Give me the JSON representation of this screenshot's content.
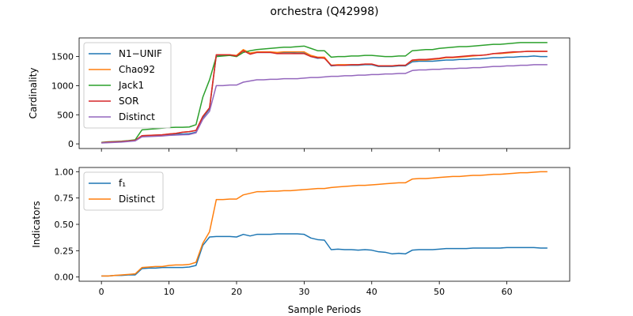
{
  "figure": {
    "title": "orchestra (Q42998)",
    "xlabel": "Sample Periods"
  },
  "chart_data": [
    {
      "type": "line",
      "ylabel": "Cardinality",
      "xlim": [
        -3.3,
        69.3
      ],
      "ylim": [
        -80,
        1820
      ],
      "x_ticks": [
        0,
        10,
        20,
        30,
        40,
        50,
        60
      ],
      "y_ticks": [
        0,
        500,
        1000,
        1500
      ],
      "x_tick_labels_visible": false,
      "legend": "upper-left",
      "grid": false,
      "series": [
        {
          "name": "N1−UNIF",
          "color": "#1f77b4",
          "values": [
            20,
            30,
            35,
            40,
            50,
            60,
            130,
            135,
            140,
            145,
            160,
            170,
            170,
            175,
            200,
            450,
            600,
            1520,
            1520,
            1520,
            1510,
            1610,
            1550,
            1570,
            1570,
            1570,
            1560,
            1570,
            1570,
            1560,
            1560,
            1500,
            1470,
            1480,
            1340,
            1350,
            1350,
            1350,
            1350,
            1360,
            1360,
            1330,
            1330,
            1330,
            1340,
            1340,
            1410,
            1420,
            1420,
            1420,
            1430,
            1440,
            1440,
            1450,
            1450,
            1460,
            1460,
            1470,
            1480,
            1480,
            1490,
            1490,
            1500,
            1500,
            1510,
            1500,
            1500
          ]
        },
        {
          "name": "Chao92",
          "color": "#ff7f0e",
          "values": [
            20,
            30,
            35,
            40,
            50,
            60,
            140,
            145,
            150,
            155,
            170,
            180,
            200,
            210,
            230,
            470,
            620,
            1530,
            1530,
            1530,
            1520,
            1620,
            1560,
            1580,
            1580,
            1580,
            1570,
            1580,
            1580,
            1580,
            1580,
            1520,
            1490,
            1490,
            1350,
            1360,
            1360,
            1360,
            1360,
            1370,
            1370,
            1340,
            1340,
            1340,
            1350,
            1350,
            1430,
            1440,
            1440,
            1450,
            1460,
            1480,
            1480,
            1490,
            1500,
            1510,
            1520,
            1530,
            1550,
            1550,
            1560,
            1570,
            1580,
            1590,
            1590,
            1590,
            1590
          ]
        },
        {
          "name": "Jack1",
          "color": "#2ca02c",
          "values": [
            25,
            35,
            40,
            45,
            55,
            70,
            240,
            250,
            260,
            270,
            280,
            285,
            285,
            290,
            330,
            800,
            1100,
            1500,
            1510,
            1520,
            1500,
            1570,
            1600,
            1620,
            1630,
            1640,
            1650,
            1660,
            1660,
            1670,
            1680,
            1640,
            1600,
            1600,
            1490,
            1500,
            1500,
            1510,
            1510,
            1520,
            1520,
            1510,
            1500,
            1500,
            1510,
            1510,
            1600,
            1610,
            1620,
            1620,
            1640,
            1650,
            1660,
            1670,
            1670,
            1680,
            1690,
            1700,
            1710,
            1710,
            1720,
            1730,
            1740,
            1740,
            1740,
            1740,
            1740
          ]
        },
        {
          "name": "SOR",
          "color": "#d62728",
          "values": [
            20,
            30,
            35,
            40,
            50,
            60,
            140,
            145,
            150,
            155,
            170,
            180,
            200,
            210,
            230,
            470,
            620,
            1530,
            1530,
            1530,
            1510,
            1600,
            1540,
            1570,
            1570,
            1570,
            1550,
            1550,
            1550,
            1550,
            1550,
            1500,
            1480,
            1470,
            1350,
            1350,
            1350,
            1360,
            1360,
            1370,
            1370,
            1340,
            1340,
            1340,
            1350,
            1350,
            1440,
            1450,
            1450,
            1460,
            1470,
            1490,
            1490,
            1500,
            1510,
            1520,
            1520,
            1530,
            1550,
            1560,
            1570,
            1580,
            1580,
            1590,
            1590,
            1590,
            1590
          ]
        },
        {
          "name": "Distinct",
          "color": "#9467bd",
          "values": [
            15,
            20,
            25,
            30,
            40,
            50,
            120,
            125,
            130,
            135,
            145,
            150,
            155,
            160,
            190,
            420,
            560,
            1000,
            1000,
            1010,
            1010,
            1060,
            1080,
            1100,
            1100,
            1110,
            1110,
            1120,
            1120,
            1120,
            1130,
            1140,
            1140,
            1150,
            1160,
            1160,
            1170,
            1170,
            1180,
            1180,
            1190,
            1190,
            1200,
            1200,
            1210,
            1210,
            1260,
            1270,
            1270,
            1280,
            1280,
            1290,
            1290,
            1300,
            1300,
            1310,
            1310,
            1320,
            1330,
            1330,
            1340,
            1340,
            1350,
            1350,
            1360,
            1360,
            1360
          ]
        }
      ]
    },
    {
      "type": "line",
      "ylabel": "Indicators",
      "xlim": [
        -3.3,
        69.3
      ],
      "ylim": [
        -0.04,
        1.04
      ],
      "x_ticks": [
        0,
        10,
        20,
        30,
        40,
        50,
        60
      ],
      "y_ticks": [
        0.0,
        0.25,
        0.5,
        0.75,
        1.0
      ],
      "y_tick_labels": [
        "0.00",
        "0.25",
        "0.50",
        "0.75",
        "1.00"
      ],
      "x_tick_labels": [
        "0",
        "10",
        "20",
        "30",
        "40",
        "50",
        "60"
      ],
      "legend": "upper-left",
      "grid": false,
      "series": [
        {
          "name": "f₁",
          "color": "#1f77b4",
          "values": [
            0.01,
            0.01,
            0.015,
            0.015,
            0.02,
            0.02,
            0.08,
            0.085,
            0.085,
            0.09,
            0.09,
            0.09,
            0.09,
            0.095,
            0.11,
            0.3,
            0.38,
            0.385,
            0.385,
            0.385,
            0.38,
            0.405,
            0.39,
            0.405,
            0.405,
            0.405,
            0.41,
            0.41,
            0.41,
            0.41,
            0.405,
            0.37,
            0.355,
            0.35,
            0.26,
            0.265,
            0.26,
            0.26,
            0.255,
            0.26,
            0.255,
            0.24,
            0.235,
            0.22,
            0.225,
            0.22,
            0.255,
            0.26,
            0.26,
            0.26,
            0.265,
            0.27,
            0.27,
            0.27,
            0.27,
            0.275,
            0.275,
            0.275,
            0.275,
            0.275,
            0.28,
            0.28,
            0.28,
            0.28,
            0.28,
            0.275,
            0.275
          ]
        },
        {
          "name": "Distinct",
          "color": "#ff7f0e",
          "values": [
            0.01,
            0.01,
            0.015,
            0.02,
            0.025,
            0.03,
            0.09,
            0.095,
            0.1,
            0.1,
            0.11,
            0.115,
            0.115,
            0.12,
            0.14,
            0.32,
            0.43,
            0.735,
            0.735,
            0.74,
            0.74,
            0.78,
            0.795,
            0.81,
            0.81,
            0.815,
            0.815,
            0.82,
            0.82,
            0.825,
            0.83,
            0.835,
            0.84,
            0.84,
            0.85,
            0.855,
            0.86,
            0.865,
            0.87,
            0.87,
            0.875,
            0.88,
            0.885,
            0.89,
            0.895,
            0.895,
            0.93,
            0.935,
            0.935,
            0.94,
            0.945,
            0.95,
            0.955,
            0.955,
            0.96,
            0.965,
            0.965,
            0.97,
            0.975,
            0.975,
            0.98,
            0.985,
            0.99,
            0.99,
            0.995,
            1.0,
            1.0
          ]
        }
      ]
    }
  ]
}
